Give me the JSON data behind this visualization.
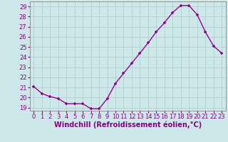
{
  "x": [
    0,
    1,
    2,
    3,
    4,
    5,
    6,
    7,
    8,
    9,
    10,
    11,
    12,
    13,
    14,
    15,
    16,
    17,
    18,
    19,
    20,
    21,
    22,
    23
  ],
  "y": [
    21.1,
    20.4,
    20.1,
    19.9,
    19.4,
    19.4,
    19.4,
    18.9,
    18.9,
    19.9,
    21.4,
    22.4,
    23.4,
    24.4,
    25.4,
    26.5,
    27.4,
    28.4,
    29.1,
    29.1,
    28.2,
    26.5,
    25.1,
    24.4
  ],
  "line_color": "#990099",
  "marker": "+",
  "xlabel": "Windchill (Refroidissement éolien,°C)",
  "xlim_min": -0.5,
  "xlim_max": 23.5,
  "ylim_min": 18.7,
  "ylim_max": 29.5,
  "yticks": [
    19,
    20,
    21,
    22,
    23,
    24,
    25,
    26,
    27,
    28,
    29
  ],
  "xticks": [
    0,
    1,
    2,
    3,
    4,
    5,
    6,
    7,
    8,
    9,
    10,
    11,
    12,
    13,
    14,
    15,
    16,
    17,
    18,
    19,
    20,
    21,
    22,
    23
  ],
  "bg_color": "#cce8e8",
  "grid_color": "#aacccc",
  "tick_label_color": "#880088",
  "xlabel_color": "#880088",
  "font_size": 6.0,
  "xlabel_fontsize": 7.0
}
